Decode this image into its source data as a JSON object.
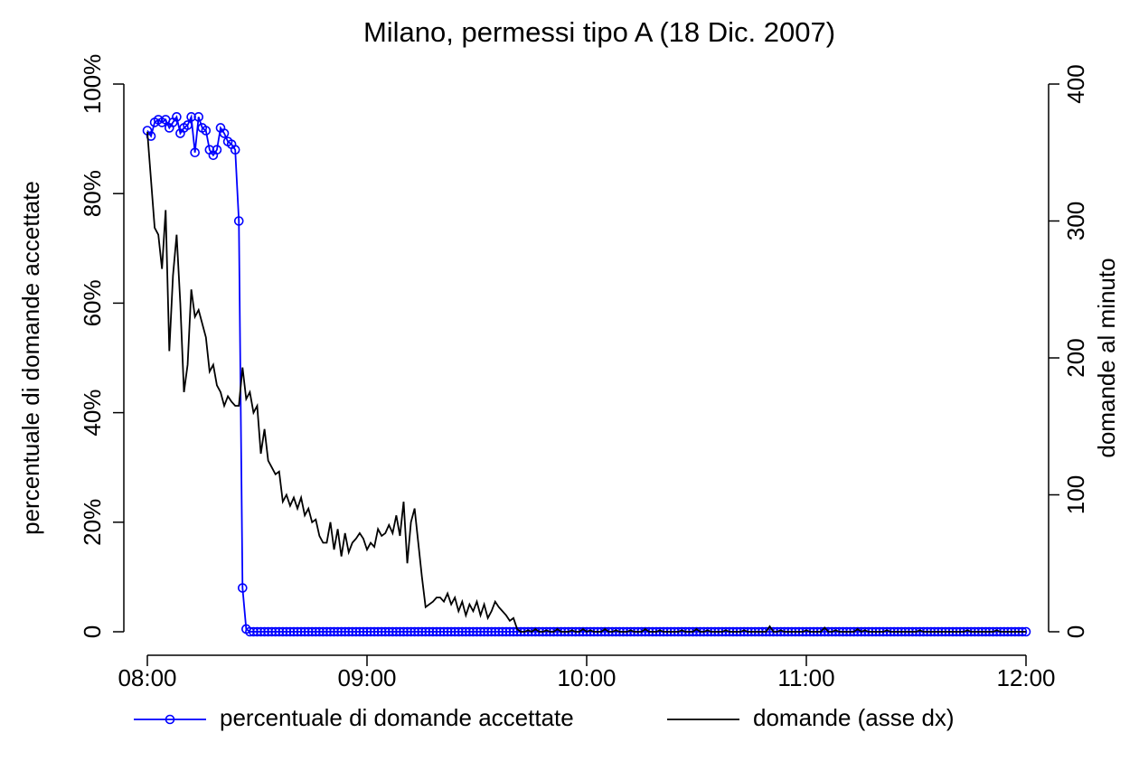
{
  "chart_data": {
    "type": "line",
    "title": "Milano, permessi tipo A (18 Dic. 2007)",
    "ylabel": "percentuale di domande accettate",
    "y2label": "domande al minuto",
    "xlim": [
      "08:00",
      "12:00"
    ],
    "xticks": [
      "08:00",
      "09:00",
      "10:00",
      "11:00",
      "12:00"
    ],
    "ylim": [
      0,
      100
    ],
    "yticks": [
      0,
      {
        "value": 20,
        "label": "20%"
      },
      {
        "value": 40,
        "label": "40%"
      },
      {
        "value": 60,
        "label": "60%"
      },
      {
        "value": 80,
        "label": "80%"
      },
      {
        "value": 100,
        "label": "100%"
      }
    ],
    "y2lim": [
      0,
      400
    ],
    "y2ticks": [
      0,
      100,
      200,
      300,
      400
    ],
    "x": [
      "08:00",
      "08:01",
      "08:02",
      "08:03",
      "08:04",
      "08:05",
      "08:06",
      "08:07",
      "08:08",
      "08:09",
      "08:10",
      "08:11",
      "08:12",
      "08:13",
      "08:14",
      "08:15",
      "08:16",
      "08:17",
      "08:18",
      "08:19",
      "08:20",
      "08:21",
      "08:22",
      "08:23",
      "08:24",
      "08:25",
      "08:26",
      "08:27",
      "08:28",
      "08:29",
      "08:30",
      "08:31",
      "08:32",
      "08:33",
      "08:34",
      "08:35",
      "08:36",
      "08:37",
      "08:38",
      "08:39",
      "08:40",
      "08:41",
      "08:42",
      "08:43",
      "08:44",
      "08:45",
      "08:46",
      "08:47",
      "08:48",
      "08:49",
      "08:50",
      "08:51",
      "08:52",
      "08:53",
      "08:54",
      "08:55",
      "08:56",
      "08:57",
      "08:58",
      "08:59",
      "09:00",
      "09:01",
      "09:02",
      "09:03",
      "09:04",
      "09:05",
      "09:06",
      "09:07",
      "09:08",
      "09:09",
      "09:10",
      "09:11",
      "09:12",
      "09:13",
      "09:14",
      "09:15",
      "09:16",
      "09:17",
      "09:18",
      "09:19",
      "09:20",
      "09:21",
      "09:22",
      "09:23",
      "09:24",
      "09:25",
      "09:26",
      "09:27",
      "09:28",
      "09:29",
      "09:30",
      "09:31",
      "09:32",
      "09:33",
      "09:34",
      "09:35",
      "09:36",
      "09:37",
      "09:38",
      "09:39",
      "09:40",
      "09:41",
      "09:42",
      "09:43",
      "09:44",
      "09:45",
      "09:46",
      "09:47",
      "09:48",
      "09:49",
      "09:50",
      "09:51",
      "09:52",
      "09:53",
      "09:54",
      "09:55",
      "09:56",
      "09:57",
      "09:58",
      "09:59",
      "10:00",
      "10:01",
      "10:02",
      "10:03",
      "10:04",
      "10:05",
      "10:06",
      "10:07",
      "10:08",
      "10:09",
      "10:10",
      "10:11",
      "10:12",
      "10:13",
      "10:14",
      "10:15",
      "10:16",
      "10:17",
      "10:18",
      "10:19",
      "10:20",
      "10:21",
      "10:22",
      "10:23",
      "10:24",
      "10:25",
      "10:26",
      "10:27",
      "10:28",
      "10:29",
      "10:30",
      "10:31",
      "10:32",
      "10:33",
      "10:34",
      "10:35",
      "10:36",
      "10:37",
      "10:38",
      "10:39",
      "10:40",
      "10:41",
      "10:42",
      "10:43",
      "10:44",
      "10:45",
      "10:46",
      "10:47",
      "10:48",
      "10:49",
      "10:50",
      "10:51",
      "10:52",
      "10:53",
      "10:54",
      "10:55",
      "10:56",
      "10:57",
      "10:58",
      "10:59",
      "11:00",
      "11:01",
      "11:02",
      "11:03",
      "11:04",
      "11:05",
      "11:06",
      "11:07",
      "11:08",
      "11:09",
      "11:10",
      "11:11",
      "11:12",
      "11:13",
      "11:14",
      "11:15",
      "11:16",
      "11:17",
      "11:18",
      "11:19",
      "11:20",
      "11:21",
      "11:22",
      "11:23",
      "11:24",
      "11:25",
      "11:26",
      "11:27",
      "11:28",
      "11:29",
      "11:30",
      "11:31",
      "11:32",
      "11:33",
      "11:34",
      "11:35",
      "11:36",
      "11:37",
      "11:38",
      "11:39",
      "11:40",
      "11:41",
      "11:42",
      "11:43",
      "11:44",
      "11:45",
      "11:46",
      "11:47",
      "11:48",
      "11:49",
      "11:50",
      "11:51",
      "11:52",
      "11:53",
      "11:54",
      "11:55",
      "11:56",
      "11:57",
      "11:58",
      "11:59",
      "12:00"
    ],
    "series": [
      {
        "name": "percentuale di domande accettate",
        "color": "#0000ff",
        "marker": "circle",
        "values": [
          91.5,
          90.5,
          93,
          93.5,
          93,
          93.5,
          92,
          93,
          94,
          91,
          92,
          92.5,
          94,
          87.5,
          94,
          92,
          91.5,
          88,
          87,
          88,
          92,
          91,
          89.5,
          89,
          88,
          75,
          8,
          0.5,
          0,
          0,
          0,
          0,
          0,
          0,
          0,
          0,
          0,
          0,
          0,
          0,
          0,
          0,
          0,
          0,
          0,
          0,
          0,
          0,
          0,
          0,
          0,
          0,
          0,
          0,
          0,
          0,
          0,
          0,
          0,
          0,
          0,
          0,
          0,
          0,
          0,
          0,
          0,
          0,
          0,
          0,
          0,
          0,
          0,
          0,
          0,
          0,
          0,
          0,
          0,
          0,
          0,
          0,
          0,
          0,
          0,
          0,
          0,
          0,
          0,
          0,
          0,
          0,
          0,
          0,
          0,
          0,
          0,
          0,
          0,
          0,
          0,
          0,
          0,
          0,
          0,
          0,
          0,
          0,
          0,
          0,
          0,
          0,
          0,
          0,
          0,
          0,
          0,
          0,
          0,
          0,
          0,
          0,
          0,
          0,
          0,
          0,
          0,
          0,
          0,
          0,
          0,
          0,
          0,
          0,
          0,
          0,
          0,
          0,
          0,
          0,
          0,
          0,
          0,
          0,
          0,
          0,
          0,
          0,
          0,
          0,
          0,
          0,
          0,
          0,
          0,
          0,
          0,
          0,
          0,
          0,
          0,
          0,
          0,
          0,
          0,
          0,
          0,
          0,
          0,
          0,
          0,
          0,
          0,
          0,
          0,
          0,
          0,
          0,
          0,
          0,
          0,
          0,
          0,
          0,
          0,
          0,
          0,
          0,
          0,
          0,
          0,
          0,
          0,
          0,
          0,
          0,
          0,
          0,
          0,
          0,
          0,
          0,
          0,
          0,
          0,
          0,
          0,
          0,
          0,
          0,
          0,
          0,
          0,
          0,
          0,
          0,
          0,
          0,
          0,
          0,
          0,
          0,
          0,
          0,
          0,
          0,
          0,
          0,
          0,
          0,
          0,
          0,
          0,
          0,
          0,
          0,
          0,
          0,
          0,
          0,
          0
        ]
      },
      {
        "name": "domande (asse dx)",
        "color": "#000000",
        "axis": "y2",
        "values": [
          365,
          330,
          295,
          290,
          265,
          308,
          205,
          260,
          290,
          240,
          175,
          195,
          250,
          230,
          235,
          225,
          215,
          190,
          195,
          180,
          175,
          165,
          172,
          168,
          165,
          165,
          193,
          170,
          175,
          160,
          165,
          130,
          148,
          125,
          120,
          115,
          117,
          95,
          100,
          92,
          98,
          90,
          98,
          85,
          90,
          80,
          82,
          70,
          65,
          65,
          80,
          60,
          75,
          55,
          72,
          58,
          65,
          68,
          72,
          68,
          60,
          65,
          62,
          75,
          70,
          72,
          78,
          72,
          85,
          70,
          95,
          50,
          80,
          90,
          65,
          40,
          18,
          20,
          22,
          25,
          25,
          22,
          28,
          20,
          25,
          15,
          22,
          12,
          20,
          15,
          22,
          12,
          20,
          10,
          15,
          22,
          18,
          15,
          12,
          8,
          10,
          2,
          0,
          0,
          1,
          0,
          2,
          0,
          0,
          1,
          0,
          0,
          2,
          0,
          0,
          0,
          1,
          0,
          0,
          2,
          0,
          1,
          0,
          0,
          0,
          2,
          0,
          0,
          1,
          0,
          0,
          0,
          1,
          0,
          0,
          0,
          2,
          0,
          0,
          0,
          1,
          0,
          0,
          0,
          0,
          0,
          1,
          0,
          0,
          0,
          2,
          0,
          0,
          1,
          0,
          0,
          0,
          0,
          1,
          0,
          0,
          0,
          0,
          1,
          0,
          0,
          0,
          0,
          0,
          0,
          4,
          0,
          0,
          1,
          0,
          0,
          0,
          0,
          0,
          0,
          1,
          0,
          0,
          0,
          0,
          3,
          0,
          0,
          1,
          0,
          0,
          0,
          0,
          0,
          2,
          0,
          1,
          0,
          0,
          0,
          0,
          0,
          1,
          0,
          0,
          0,
          0,
          0,
          0,
          0,
          0,
          1,
          0,
          0,
          0,
          0,
          0,
          0,
          0,
          0,
          0,
          0,
          0,
          0,
          1,
          0,
          0,
          0,
          0,
          0,
          0,
          0,
          1,
          0,
          0,
          0,
          0,
          0,
          0,
          0,
          0
        ]
      }
    ]
  }
}
